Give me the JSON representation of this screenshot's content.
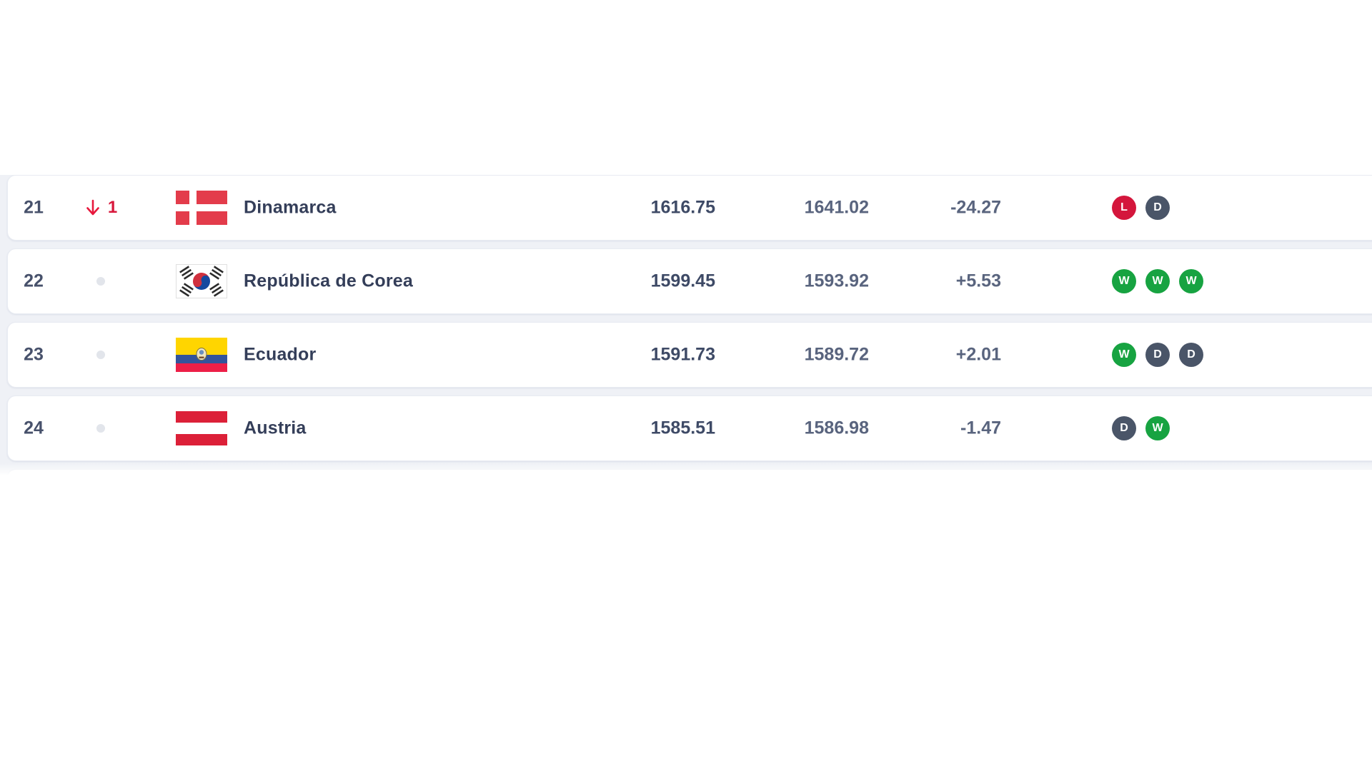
{
  "table": {
    "rows": [
      {
        "rank": "21",
        "movement": {
          "direction": "down",
          "amount": "1"
        },
        "team": "Dinamarca",
        "flag": "denmark",
        "points_total": "1616.75",
        "points_previous": "1641.02",
        "points_change": "-24.27",
        "form": [
          "L",
          "D"
        ]
      },
      {
        "rank": "22",
        "movement": {
          "direction": "none"
        },
        "team": "República de Corea",
        "flag": "south-korea",
        "points_total": "1599.45",
        "points_previous": "1593.92",
        "points_change": "+5.53",
        "form": [
          "W",
          "W",
          "W"
        ]
      },
      {
        "rank": "23",
        "movement": {
          "direction": "none"
        },
        "team": "Ecuador",
        "flag": "ecuador",
        "points_total": "1591.73",
        "points_previous": "1589.72",
        "points_change": "+2.01",
        "form": [
          "W",
          "D",
          "D"
        ]
      },
      {
        "rank": "24",
        "movement": {
          "direction": "none"
        },
        "team": "Austria",
        "flag": "austria",
        "points_total": "1585.51",
        "points_previous": "1586.98",
        "points_change": "-1.47",
        "form": [
          "D",
          "W"
        ]
      }
    ],
    "form_badge_colors": {
      "W": "#17A341",
      "D": "#4A5568",
      "L": "#D4163C"
    },
    "form_badge_names": {
      "W": "form-badge-win",
      "D": "form-badge-draw",
      "L": "form-badge-loss"
    },
    "movement_down_color": "#E7183C"
  }
}
